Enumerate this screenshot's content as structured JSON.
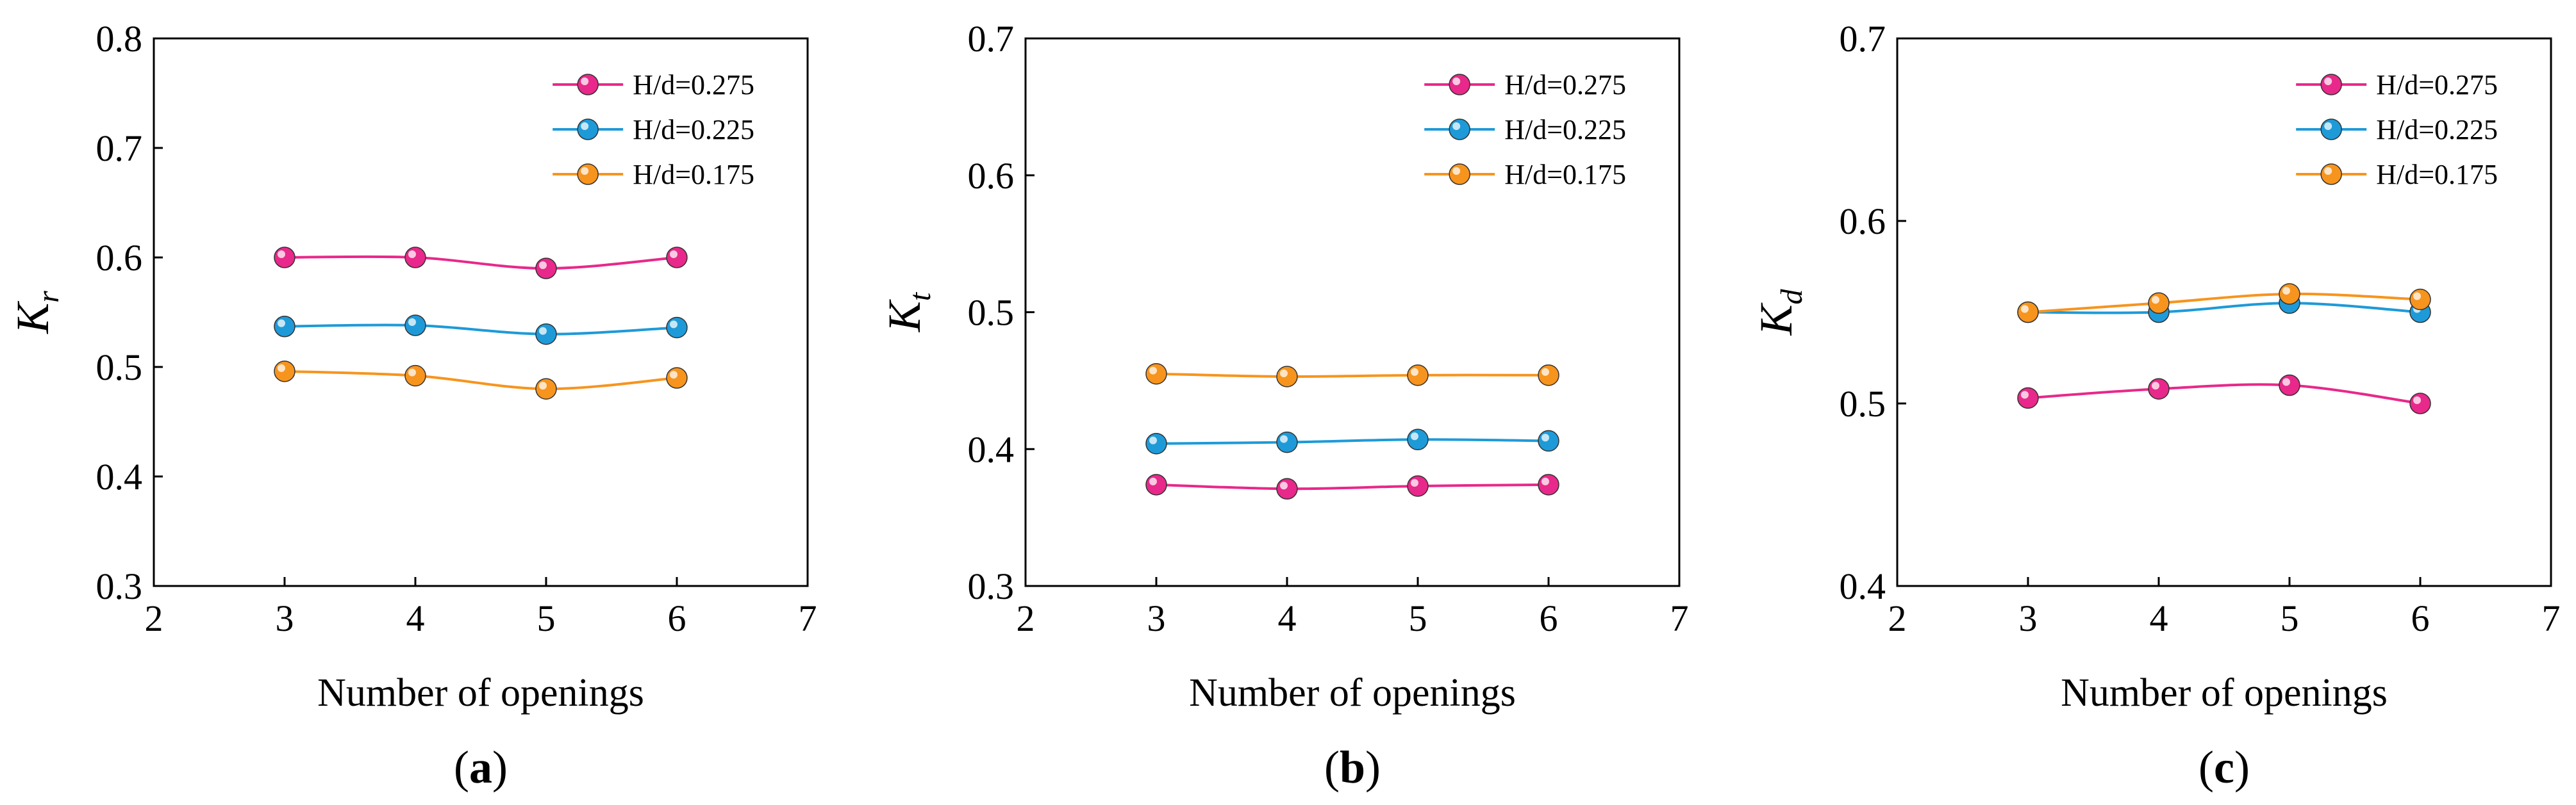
{
  "chart_data": [
    {
      "type": "line",
      "panel_label": "a",
      "xlabel": "Number of openings",
      "ylabel": {
        "main": "K",
        "sub": "r"
      },
      "xlim": [
        2,
        7
      ],
      "ylim": [
        0.3,
        0.8
      ],
      "xticks": [
        "2",
        "3",
        "4",
        "5",
        "6",
        "7"
      ],
      "yticks": [
        "0.3",
        "0.4",
        "0.5",
        "0.6",
        "0.7",
        "0.8"
      ],
      "x": [
        3,
        4,
        5,
        6
      ],
      "legend_position": "top-right",
      "series": [
        {
          "name": "H/d=0.275",
          "color": "#e8288a",
          "values": [
            0.6,
            0.6,
            0.59,
            0.6
          ]
        },
        {
          "name": "H/d=0.225",
          "color": "#1e9ad8",
          "values": [
            0.537,
            0.538,
            0.53,
            0.536
          ]
        },
        {
          "name": "H/d=0.175",
          "color": "#f7941d",
          "values": [
            0.496,
            0.492,
            0.48,
            0.49
          ]
        }
      ]
    },
    {
      "type": "line",
      "panel_label": "b",
      "xlabel": "Number of openings",
      "ylabel": {
        "main": "K",
        "sub": "t"
      },
      "xlim": [
        2,
        7
      ],
      "ylim": [
        0.3,
        0.7
      ],
      "xticks": [
        "2",
        "3",
        "4",
        "5",
        "6",
        "7"
      ],
      "yticks": [
        "0.3",
        "0.4",
        "0.5",
        "0.6",
        "0.7"
      ],
      "x": [
        3,
        4,
        5,
        6
      ],
      "legend_position": "top-right",
      "series": [
        {
          "name": "H/d=0.275",
          "color": "#e8288a",
          "values": [
            0.374,
            0.371,
            0.373,
            0.374
          ]
        },
        {
          "name": "H/d=0.225",
          "color": "#1e9ad8",
          "values": [
            0.404,
            0.405,
            0.407,
            0.406
          ]
        },
        {
          "name": "H/d=0.175",
          "color": "#f7941d",
          "values": [
            0.455,
            0.453,
            0.454,
            0.454
          ]
        }
      ]
    },
    {
      "type": "line",
      "panel_label": "c",
      "xlabel": "Number of openings",
      "ylabel": {
        "main": "K",
        "sub": "d"
      },
      "xlim": [
        2,
        7
      ],
      "ylim": [
        0.4,
        0.7
      ],
      "xticks": [
        "2",
        "3",
        "4",
        "5",
        "6",
        "7"
      ],
      "yticks": [
        "0.4",
        "0.5",
        "0.6",
        "0.7"
      ],
      "x": [
        3,
        4,
        5,
        6
      ],
      "legend_position": "top-right",
      "series": [
        {
          "name": "H/d=0.275",
          "color": "#e8288a",
          "values": [
            0.503,
            0.508,
            0.51,
            0.5
          ]
        },
        {
          "name": "H/d=0.225",
          "color": "#1e9ad8",
          "values": [
            0.55,
            0.55,
            0.555,
            0.55
          ]
        },
        {
          "name": "H/d=0.175",
          "color": "#f7941d",
          "values": [
            0.55,
            0.555,
            0.56,
            0.557
          ]
        }
      ]
    }
  ]
}
